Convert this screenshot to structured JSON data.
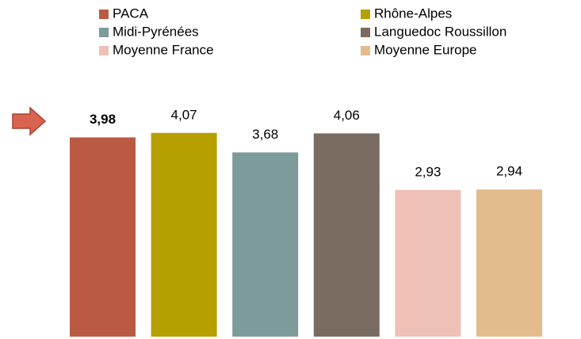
{
  "chart_data": {
    "type": "bar",
    "categories": [
      null
    ],
    "series": [
      {
        "name": "PACA",
        "color": "#bb5a43",
        "values": [
          3.98
        ],
        "value_labels": [
          "3,98"
        ]
      },
      {
        "name": "Rhône-Alpes",
        "color": "#b5a000",
        "values": [
          4.07
        ],
        "value_labels": [
          "4,07"
        ]
      },
      {
        "name": "Midi-Pyrénées",
        "color": "#7d9b9b",
        "values": [
          3.68
        ],
        "value_labels": [
          "3,68"
        ]
      },
      {
        "name": "Languedoc Roussillon",
        "color": "#7a6b60",
        "values": [
          4.06
        ],
        "value_labels": [
          "4,06"
        ]
      },
      {
        "name": "Moyenne France",
        "color": "#eec0b6",
        "values": [
          2.93
        ],
        "value_labels": [
          "2,93"
        ]
      },
      {
        "name": "Moyenne Europe",
        "color": "#e3bc8e",
        "values": [
          2.94
        ],
        "value_labels": [
          "2,94"
        ]
      }
    ],
    "ylim": [
      0,
      4.5
    ]
  }
}
